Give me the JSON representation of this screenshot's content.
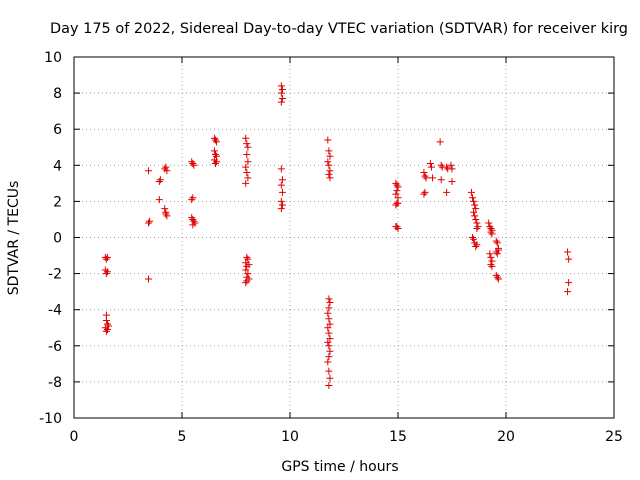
{
  "chart_data": {
    "type": "scatter",
    "title": "Day 175 of 2022, Sidereal Day-to-day VTEC variation (SDTVAR) for receiver kirg",
    "xlabel": "GPS time / hours",
    "ylabel": "SDTVAR / TECUs",
    "xlim": [
      0,
      25
    ],
    "ylim": [
      -10,
      10
    ],
    "xticks": [
      0,
      5,
      10,
      15,
      20,
      25
    ],
    "yticks": [
      -10,
      -8,
      -6,
      -4,
      -2,
      0,
      2,
      4,
      6,
      8,
      10
    ],
    "grid": true,
    "marker": "+",
    "color": "#e00000",
    "series": [
      {
        "name": "SDTVAR",
        "points": [
          [
            1.45,
            -1.1
          ],
          [
            1.5,
            -1.2
          ],
          [
            1.55,
            -1.1
          ],
          [
            1.45,
            -1.8
          ],
          [
            1.5,
            -2.0
          ],
          [
            1.55,
            -1.9
          ],
          [
            1.5,
            -4.3
          ],
          [
            1.5,
            -4.6
          ],
          [
            1.55,
            -4.8
          ],
          [
            1.6,
            -4.9
          ],
          [
            1.45,
            -5.0
          ],
          [
            1.5,
            -5.2
          ],
          [
            1.55,
            -5.1
          ],
          [
            3.45,
            3.7
          ],
          [
            3.45,
            0.8
          ],
          [
            3.5,
            0.9
          ],
          [
            3.45,
            -2.3
          ],
          [
            3.95,
            3.1
          ],
          [
            4.0,
            3.2
          ],
          [
            3.95,
            2.1
          ],
          [
            4.2,
            3.8
          ],
          [
            4.25,
            3.9
          ],
          [
            4.3,
            3.7
          ],
          [
            4.2,
            1.6
          ],
          [
            4.25,
            1.4
          ],
          [
            4.3,
            1.2
          ],
          [
            4.25,
            1.3
          ],
          [
            5.45,
            4.2
          ],
          [
            5.5,
            4.1
          ],
          [
            5.55,
            4.0
          ],
          [
            5.45,
            2.1
          ],
          [
            5.5,
            2.2
          ],
          [
            5.45,
            1.1
          ],
          [
            5.5,
            1.0
          ],
          [
            5.55,
            0.9
          ],
          [
            5.6,
            0.8
          ],
          [
            5.5,
            0.7
          ],
          [
            6.5,
            5.5
          ],
          [
            6.55,
            5.4
          ],
          [
            6.6,
            5.3
          ],
          [
            6.5,
            4.8
          ],
          [
            6.55,
            4.6
          ],
          [
            6.6,
            4.5
          ],
          [
            6.5,
            4.3
          ],
          [
            6.55,
            4.1
          ],
          [
            6.6,
            4.2
          ],
          [
            7.95,
            5.5
          ],
          [
            8.0,
            5.2
          ],
          [
            8.05,
            5.0
          ],
          [
            8.0,
            4.6
          ],
          [
            8.05,
            4.2
          ],
          [
            7.95,
            3.9
          ],
          [
            8.0,
            3.6
          ],
          [
            8.05,
            3.3
          ],
          [
            7.95,
            3.0
          ],
          [
            8.0,
            -1.1
          ],
          [
            8.05,
            -1.2
          ],
          [
            7.95,
            -1.4
          ],
          [
            8.0,
            -1.6
          ],
          [
            8.1,
            -1.5
          ],
          [
            7.95,
            -1.8
          ],
          [
            8.05,
            -2.0
          ],
          [
            8.0,
            -2.2
          ],
          [
            8.1,
            -2.3
          ],
          [
            7.95,
            -2.5
          ],
          [
            8.0,
            -2.4
          ],
          [
            9.6,
            8.4
          ],
          [
            9.65,
            8.2
          ],
          [
            9.6,
            8.0
          ],
          [
            9.65,
            7.7
          ],
          [
            9.6,
            7.5
          ],
          [
            9.6,
            3.8
          ],
          [
            9.65,
            3.2
          ],
          [
            9.6,
            2.9
          ],
          [
            9.65,
            2.5
          ],
          [
            9.6,
            2.0
          ],
          [
            9.65,
            1.8
          ],
          [
            9.6,
            1.6
          ],
          [
            11.75,
            5.4
          ],
          [
            11.8,
            4.8
          ],
          [
            11.85,
            4.5
          ],
          [
            11.75,
            4.2
          ],
          [
            11.8,
            4.0
          ],
          [
            11.85,
            3.7
          ],
          [
            11.8,
            3.5
          ],
          [
            11.85,
            3.3
          ],
          [
            11.8,
            -3.4
          ],
          [
            11.85,
            -3.6
          ],
          [
            11.8,
            -3.9
          ],
          [
            11.75,
            -4.2
          ],
          [
            11.8,
            -4.5
          ],
          [
            11.85,
            -4.8
          ],
          [
            11.75,
            -5.0
          ],
          [
            11.8,
            -5.3
          ],
          [
            11.85,
            -5.6
          ],
          [
            11.75,
            -5.8
          ],
          [
            11.8,
            -6.0
          ],
          [
            11.85,
            -6.3
          ],
          [
            11.8,
            -6.6
          ],
          [
            11.75,
            -6.9
          ],
          [
            11.8,
            -7.4
          ],
          [
            11.85,
            -7.8
          ],
          [
            11.8,
            -8.2
          ],
          [
            14.9,
            3.0
          ],
          [
            14.95,
            2.9
          ],
          [
            15.0,
            2.8
          ],
          [
            14.95,
            2.6
          ],
          [
            14.9,
            2.4
          ],
          [
            15.0,
            2.2
          ],
          [
            14.95,
            1.9
          ],
          [
            14.9,
            1.8
          ],
          [
            15.0,
            1.9
          ],
          [
            14.95,
            0.6
          ],
          [
            15.0,
            0.5
          ],
          [
            14.9,
            0.6
          ],
          [
            16.2,
            3.6
          ],
          [
            16.25,
            3.4
          ],
          [
            16.3,
            3.3
          ],
          [
            16.2,
            2.4
          ],
          [
            16.25,
            2.5
          ],
          [
            16.5,
            4.1
          ],
          [
            16.55,
            3.9
          ],
          [
            16.6,
            3.3
          ],
          [
            16.95,
            5.3
          ],
          [
            17.0,
            4.0
          ],
          [
            17.05,
            3.9
          ],
          [
            17.0,
            3.2
          ],
          [
            17.25,
            3.9
          ],
          [
            17.3,
            3.8
          ],
          [
            17.45,
            4.0
          ],
          [
            17.5,
            3.8
          ],
          [
            17.25,
            2.5
          ],
          [
            17.5,
            3.1
          ],
          [
            18.4,
            2.5
          ],
          [
            18.45,
            2.2
          ],
          [
            18.5,
            2.0
          ],
          [
            18.55,
            1.8
          ],
          [
            18.6,
            1.6
          ],
          [
            18.5,
            1.4
          ],
          [
            18.55,
            1.2
          ],
          [
            18.6,
            1.0
          ],
          [
            18.65,
            0.8
          ],
          [
            18.7,
            0.6
          ],
          [
            18.65,
            0.5
          ],
          [
            18.45,
            0.0
          ],
          [
            18.5,
            -0.1
          ],
          [
            18.55,
            -0.3
          ],
          [
            18.6,
            -0.5
          ],
          [
            18.65,
            -0.4
          ],
          [
            19.2,
            0.8
          ],
          [
            19.25,
            0.6
          ],
          [
            19.3,
            0.5
          ],
          [
            19.35,
            0.4
          ],
          [
            19.3,
            0.3
          ],
          [
            19.35,
            0.2
          ],
          [
            19.25,
            -0.9
          ],
          [
            19.3,
            -1.1
          ],
          [
            19.35,
            -1.3
          ],
          [
            19.3,
            -1.5
          ],
          [
            19.35,
            -1.6
          ],
          [
            19.55,
            -0.2
          ],
          [
            19.6,
            -0.3
          ],
          [
            19.65,
            -0.6
          ],
          [
            19.55,
            -0.8
          ],
          [
            19.6,
            -0.9
          ],
          [
            19.65,
            -0.7
          ],
          [
            19.55,
            -2.1
          ],
          [
            19.6,
            -2.2
          ],
          [
            19.65,
            -2.3
          ],
          [
            22.85,
            -0.8
          ],
          [
            22.9,
            -1.2
          ],
          [
            22.9,
            -2.5
          ],
          [
            22.85,
            -3.0
          ]
        ]
      }
    ]
  }
}
